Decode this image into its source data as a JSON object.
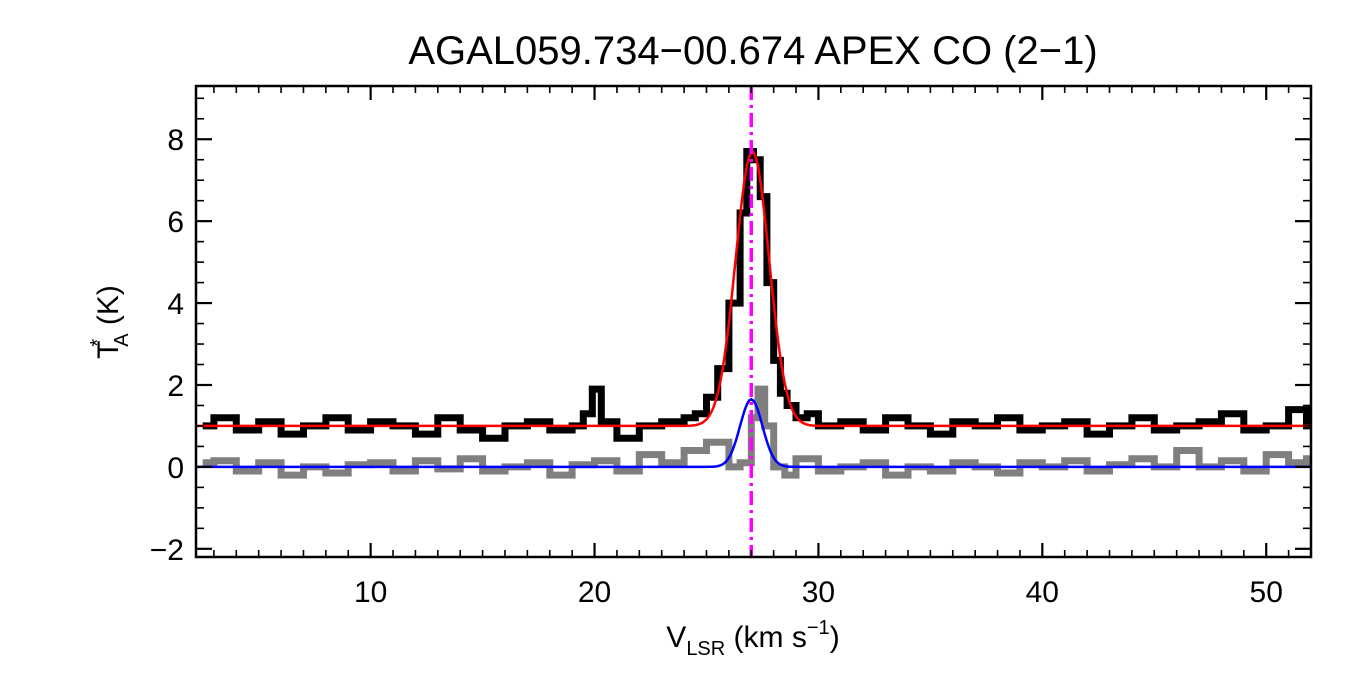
{
  "chart_data": {
    "type": "line",
    "title": "AGAL059.734−00.674  APEX CO (2−1)",
    "xlabel": {
      "main": "V",
      "sub": "LSR",
      "unit": " (km s",
      "sup": "−1",
      "close": ")"
    },
    "ylabel": {
      "main": "T",
      "sup": "*",
      "sub": "A",
      "unit": " (K)"
    },
    "xlim": [
      2.2,
      52
    ],
    "ylim": [
      -2.2,
      9.3
    ],
    "xticks": [
      10,
      20,
      30,
      40,
      50
    ],
    "yticks": [
      -2,
      0,
      2,
      4,
      6,
      8
    ],
    "xtick_labels": [
      "10",
      "20",
      "30",
      "40",
      "50"
    ],
    "ytick_labels": [
      "−2",
      "0",
      "2",
      "4",
      "6",
      "8"
    ],
    "vline": {
      "x": 27.0,
      "color": "#ff00ff",
      "style": "dash-dot"
    },
    "series": [
      {
        "style": "step",
        "color": "#000000",
        "offset": 1.0,
        "x": [
          2.5,
          3.0,
          4.0,
          5.0,
          6.0,
          7.0,
          8.0,
          9.0,
          10.0,
          11.0,
          12.0,
          13.0,
          14.0,
          15.0,
          16.0,
          17.0,
          18.0,
          19.0,
          19.5,
          19.9,
          20.3,
          21.0,
          22.0,
          23.0,
          24.0,
          24.5,
          25.0,
          25.5,
          26.0,
          26.5,
          26.8,
          27.1,
          27.4,
          27.7,
          28.0,
          28.3,
          28.6,
          29.0,
          29.5,
          30.0,
          31.0,
          32.0,
          33.0,
          34.0,
          35.0,
          36.0,
          37.0,
          38.0,
          39.0,
          40.0,
          41.0,
          42.0,
          43.0,
          44.0,
          45.0,
          46.0,
          47.0,
          48.0,
          49.0,
          50.0,
          51.0,
          51.8
        ],
        "y": [
          1.0,
          1.2,
          0.9,
          1.1,
          0.8,
          1.0,
          1.2,
          0.9,
          1.1,
          1.0,
          0.8,
          1.2,
          0.9,
          0.7,
          1.0,
          1.1,
          0.9,
          1.0,
          1.3,
          1.9,
          1.1,
          0.7,
          1.0,
          1.1,
          1.2,
          1.3,
          1.7,
          2.4,
          4.0,
          6.2,
          7.7,
          7.5,
          6.6,
          4.5,
          2.6,
          1.8,
          1.5,
          1.2,
          1.3,
          1.0,
          1.1,
          0.9,
          1.2,
          1.0,
          0.8,
          1.1,
          1.0,
          1.2,
          0.9,
          1.0,
          1.1,
          0.8,
          1.0,
          1.2,
          0.9,
          1.0,
          1.1,
          1.3,
          0.9,
          1.0,
          1.4,
          1.0
        ]
      },
      {
        "style": "step",
        "color": "#7f7f7f",
        "offset": 0.0,
        "x": [
          2.5,
          3.0,
          4.0,
          5.0,
          6.0,
          7.0,
          8.0,
          9.0,
          10.0,
          11.0,
          12.0,
          13.0,
          14.0,
          15.0,
          16.0,
          17.0,
          18.0,
          19.0,
          20.0,
          21.0,
          22.0,
          23.0,
          24.0,
          25.0,
          26.0,
          26.5,
          27.0,
          27.3,
          27.6,
          28.0,
          28.5,
          29.0,
          30.0,
          31.0,
          32.0,
          33.0,
          34.0,
          35.0,
          36.0,
          37.0,
          38.0,
          39.0,
          40.0,
          41.0,
          42.0,
          43.0,
          44.0,
          45.0,
          46.0,
          47.0,
          48.0,
          49.0,
          50.0,
          51.0,
          51.8
        ],
        "y": [
          0.1,
          0.15,
          -0.1,
          0.1,
          -0.2,
          0.0,
          -0.15,
          0.05,
          0.1,
          -0.1,
          0.15,
          -0.05,
          0.2,
          -0.1,
          0.0,
          0.1,
          -0.2,
          0.05,
          0.15,
          -0.1,
          0.3,
          0.1,
          0.4,
          0.6,
          0.0,
          0.1,
          1.2,
          1.9,
          1.0,
          0.0,
          -0.2,
          0.2,
          -0.1,
          0.0,
          0.1,
          -0.2,
          0.0,
          -0.1,
          0.1,
          0.0,
          -0.15,
          0.1,
          0.0,
          0.15,
          -0.1,
          0.05,
          0.2,
          0.0,
          0.4,
          0.0,
          0.15,
          -0.1,
          0.3,
          0.1,
          0.2
        ]
      },
      {
        "style": "gaussian",
        "color": "#ff0000",
        "baseline": 1.0,
        "amplitude": 6.7,
        "center": 27.05,
        "sigma": 0.75
      },
      {
        "style": "gaussian",
        "color": "#0000ff",
        "baseline": 0.0,
        "amplitude": 1.65,
        "center": 27.0,
        "sigma": 0.5
      }
    ],
    "grid": false,
    "legend": "none"
  }
}
